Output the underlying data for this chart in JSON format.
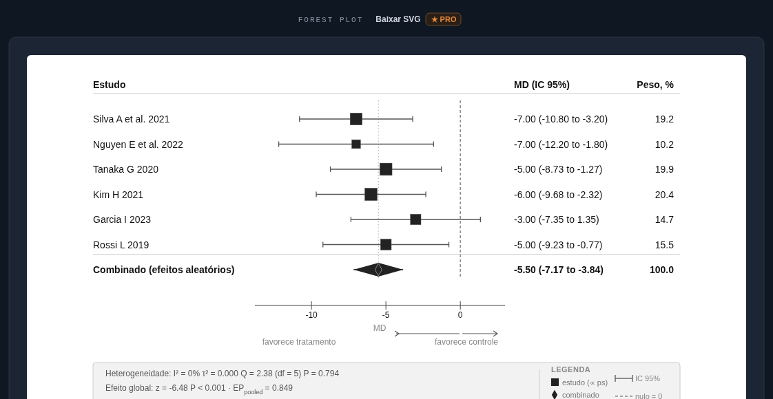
{
  "chart_data": {
    "type": "scatter",
    "orientation": "horizontal",
    "title": "FOREST PLOT",
    "xlabel": "MD",
    "legend_title": "LEGENDA",
    "legend": "bottom right",
    "grid": false,
    "categories": [
      "Silva A et al. 2021",
      "Nguyen E et al. 2022",
      "Tanaka G 2020",
      "Kim H 2021",
      "Garcia I 2023",
      "Rossi L 2019",
      "Combinado (efeitos aleatórios)"
    ],
    "xlim": [
      -13.8,
      3
    ],
    "xticks": [
      -10,
      -5,
      0
    ],
    "series": [
      {
        "name": "estudo (∝ ps)",
        "type": "bubble",
        "marker": "square",
        "color": "#222222",
        "values": [
          -7,
          -7,
          -5,
          -6,
          -3,
          -5,
          null
        ],
        "errors": [
          [
            -10.8,
            -3.2
          ],
          [
            -12.2,
            -1.8
          ],
          [
            -8.73,
            -1.27
          ],
          [
            -9.68,
            -2.32
          ],
          [
            -7.35,
            1.35
          ],
          [
            -9.23,
            -0.77
          ],
          null
        ],
        "sizes": [
          0.94,
          0.5,
          0.98,
          1,
          0.72,
          0.76,
          null
        ]
      },
      {
        "name": "combinado",
        "marker": "diamond",
        "color": "#222222",
        "values": [
          null,
          null,
          null,
          null,
          null,
          null,
          -5.5
        ],
        "errors": [
          null,
          null,
          null,
          null,
          null,
          null,
          [
            -7.17,
            -3.84
          ]
        ]
      }
    ],
    "ref_lines": [
      {
        "axis": "x",
        "value": 0,
        "label": "nulo = 0",
        "line_style": "dashed",
        "color": "#888888"
      },
      {
        "axis": "x",
        "value": -5.5,
        "label": null,
        "line_style": "dotted",
        "color": "#bbbbbb"
      }
    ],
    "annotations": [
      "Estudo",
      "MD (IC 95%)",
      "Peso, %",
      "favorece tratamento",
      "favorece controle",
      "Heterogeneidade: I² = 0% τ² = 0.000 Q = 2.38 (df = 5) P = 0.794",
      "Efeito global: z = -6.48 P < 0.001 · EP$_{pooled}$ = 0.849",
      "IC 95%",
      "Baixar SVG",
      "★ PRO",
      "-7.00 (-10.80 to -3.20)",
      "-7.00 (-12.20 to -1.80)",
      "-5.00 (-8.73 to -1.27)",
      "-6.00 (-9.68 to -2.32)",
      "-3.00 (-7.35 to 1.35)",
      "-5.00 (-9.23 to -0.77)",
      "-5.50 (-7.17 to -3.84)",
      "19.2",
      "10.2",
      "19.9",
      "20.4",
      "14.7",
      "15.5",
      "100.0"
    ]
  }
}
